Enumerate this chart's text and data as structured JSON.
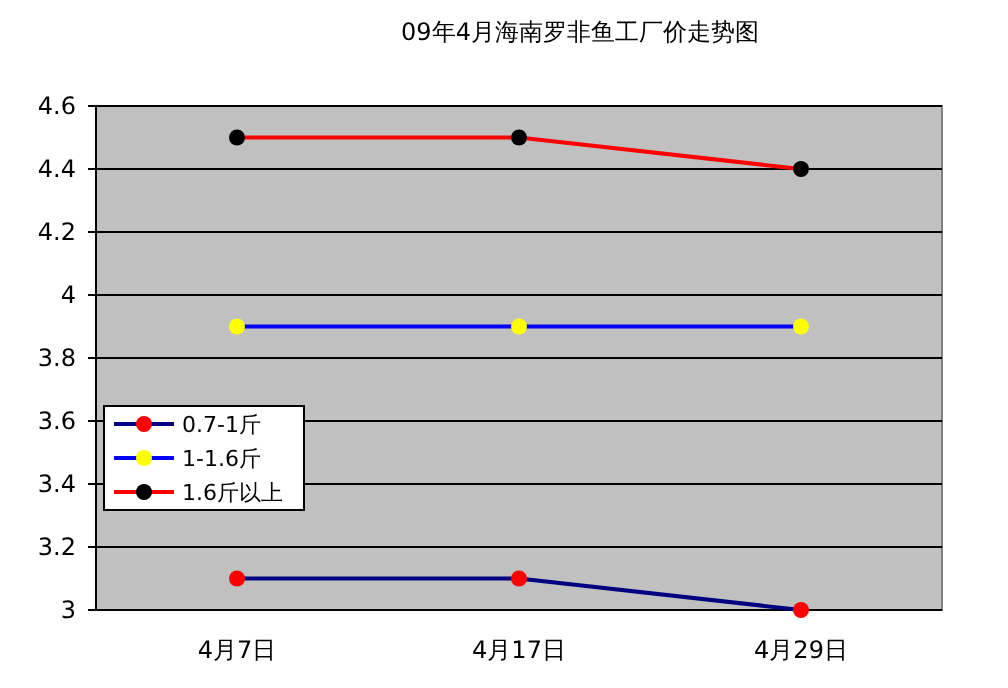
{
  "chart_data": {
    "type": "line",
    "title": "09年4月海南罗非鱼工厂价走势图",
    "categories": [
      "4月7日",
      "4月17日",
      "4月29日"
    ],
    "series": [
      {
        "name": "0.7-1斤",
        "color": "#000080",
        "colors": [
          "#ff0000",
          "#ff0000",
          "#ff0000"
        ],
        "values": [
          3.1,
          3.1,
          3.0
        ]
      },
      {
        "name": "1-1.6斤",
        "color": "#0000ff",
        "colors": [
          "#ffff00",
          "#ffff00",
          "#ffff00"
        ],
        "values": [
          3.9,
          3.9,
          3.9
        ]
      },
      {
        "name": "1.6斤以上",
        "color": "#ff0000",
        "colors": [
          "#000000",
          "#000000",
          "#000000"
        ],
        "values": [
          4.5,
          4.5,
          4.4
        ]
      }
    ],
    "ylim": [
      3,
      4.6
    ],
    "yticks": [
      3,
      3.2,
      3.4,
      3.6,
      3.8,
      4,
      4.2,
      4.4,
      4.6
    ],
    "grid": "y",
    "legend": "left",
    "marker": "circle",
    "line_style": "solid"
  }
}
